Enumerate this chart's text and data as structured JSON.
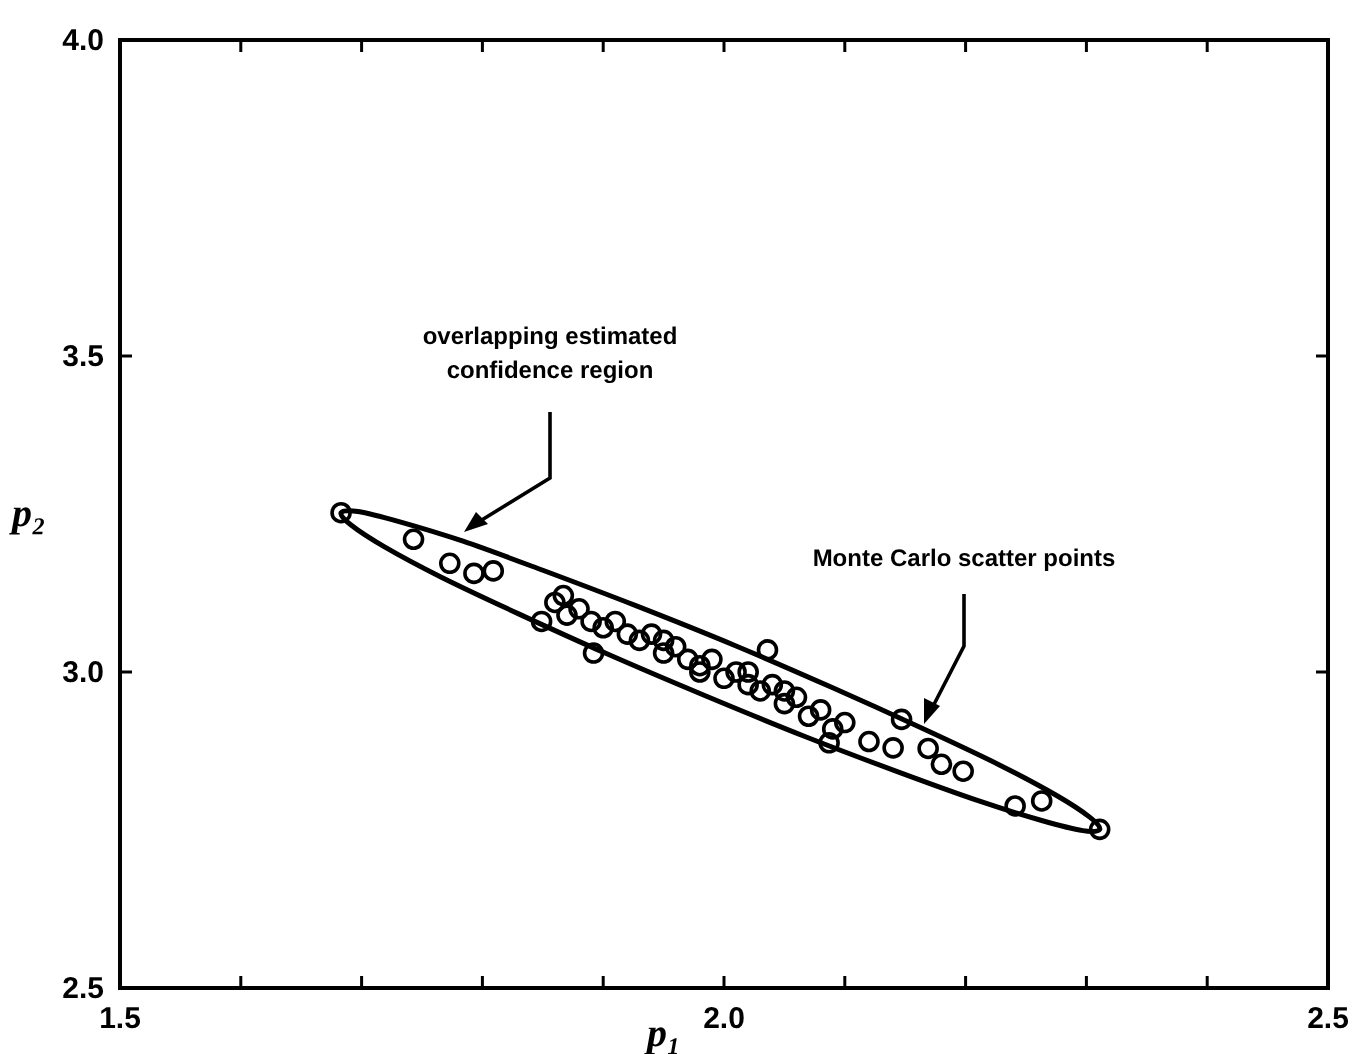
{
  "chart_data": {
    "type": "scatter",
    "xlabel": "p₁",
    "ylabel": "p₂",
    "xlim": [
      1.5,
      2.5
    ],
    "ylim": [
      2.5,
      4.0
    ],
    "xticks": [
      {
        "value": 1.5,
        "label": "1.5"
      },
      {
        "value": 1.6,
        "label": null
      },
      {
        "value": 1.7,
        "label": null
      },
      {
        "value": 1.8,
        "label": null
      },
      {
        "value": 1.9,
        "label": null
      },
      {
        "value": 2.0,
        "label": "2.0"
      },
      {
        "value": 2.1,
        "label": null
      },
      {
        "value": 2.2,
        "label": null
      },
      {
        "value": 2.3,
        "label": null
      },
      {
        "value": 2.4,
        "label": null
      },
      {
        "value": 2.5,
        "label": "2.5"
      }
    ],
    "yticks": [
      {
        "value": 2.5,
        "label": "2.5"
      },
      {
        "value": 3.0,
        "label": "3.0"
      },
      {
        "value": 3.5,
        "label": "3.5"
      },
      {
        "value": 4.0,
        "label": "4.0"
      }
    ],
    "grid": false,
    "series": [
      {
        "color": "#000000",
        "marker": "circle",
        "x": [
          1.683,
          1.743,
          1.773,
          1.793,
          1.809,
          1.849,
          1.867,
          1.892,
          2.036,
          2.087,
          2.147,
          2.169,
          2.18,
          2.198,
          2.241,
          2.263,
          2.311,
          1.86,
          1.87,
          1.88,
          1.89,
          1.9,
          1.91,
          1.92,
          1.93,
          1.94,
          1.95,
          1.96,
          1.97,
          1.98,
          1.99,
          2.0,
          2.01,
          2.02,
          2.03,
          2.04,
          2.05,
          2.06,
          2.07,
          2.08,
          2.09,
          2.1,
          2.12,
          2.14,
          1.95,
          1.98,
          2.02,
          2.05
        ],
        "values": [
          3.252,
          3.21,
          3.172,
          3.156,
          3.16,
          3.08,
          3.121,
          3.03,
          3.035,
          2.888,
          2.925,
          2.879,
          2.854,
          2.843,
          2.788,
          2.796,
          2.751,
          3.11,
          3.09,
          3.1,
          3.08,
          3.07,
          3.08,
          3.06,
          3.05,
          3.06,
          3.03,
          3.04,
          3.02,
          3.01,
          3.02,
          2.99,
          3.0,
          2.98,
          2.97,
          2.98,
          2.95,
          2.96,
          2.93,
          2.94,
          2.91,
          2.92,
          2.89,
          2.88,
          3.05,
          3.0,
          3.0,
          2.97
        ]
      }
    ],
    "annotations": [
      "overlapping estimated\nconfidence region",
      "Monte Carlo scatter points"
    ]
  }
}
